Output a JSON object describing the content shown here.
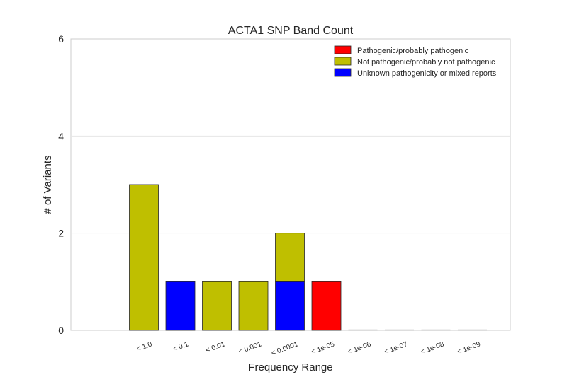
{
  "chart_data": {
    "type": "bar",
    "stacked": true,
    "title": "ACTA1 SNP Band Count",
    "xlabel": "Frequency Range",
    "ylabel": "# of Variants",
    "ylim": [
      0,
      6
    ],
    "yticks": [
      0,
      2,
      4,
      6
    ],
    "grid": "horizontal",
    "legend_position": "top-right",
    "categories": [
      "< 1.0",
      "< 0.1",
      "< 0.01",
      "< 0.001",
      "< 0.0001",
      "< 1e-05",
      "< 1e-06",
      "< 1e-07",
      "< 1e-08",
      "< 1e-09"
    ],
    "series": [
      {
        "name": "Pathogenic/probably pathogenic",
        "color": "#ff0000",
        "values": [
          0,
          0,
          0,
          0,
          0,
          1,
          0,
          0,
          0,
          0
        ]
      },
      {
        "name": "Not pathogenic/probably not pathogenic",
        "color": "#bfbf00",
        "values": [
          3,
          0,
          1,
          1,
          1,
          0,
          0,
          0,
          0,
          0
        ]
      },
      {
        "name": "Unknown pathogenicity or mixed reports",
        "color": "#0000ff",
        "values": [
          0,
          1,
          0,
          0,
          1,
          0,
          0,
          0,
          0,
          0
        ]
      }
    ]
  }
}
